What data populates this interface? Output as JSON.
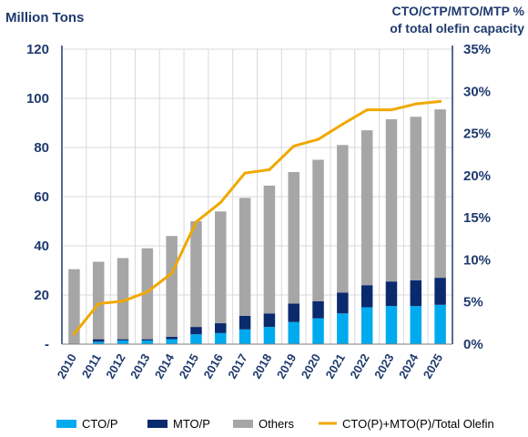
{
  "chart_data": {
    "type": "bar",
    "stacked": true,
    "y_left_label": "Million Tons",
    "y_right_label_line1": "CTO/CTP/MTO/MTP %",
    "y_right_label_line2": "of total olefin capacity",
    "ylim_left": [
      0,
      120
    ],
    "ylim_right": [
      0,
      35
    ],
    "y_left_ticks": [
      "-",
      "20",
      "40",
      "60",
      "80",
      "100",
      "120"
    ],
    "y_left_tick_values": [
      0,
      20,
      40,
      60,
      80,
      100,
      120
    ],
    "y_right_ticks": [
      "0%",
      "5%",
      "10%",
      "15%",
      "20%",
      "25%",
      "30%",
      "35%"
    ],
    "y_right_tick_values": [
      0,
      5,
      10,
      15,
      20,
      25,
      30,
      35
    ],
    "grid": true,
    "legend_position": "bottom",
    "categories": [
      "2010",
      "2011",
      "2012",
      "2013",
      "2014",
      "2015",
      "2016",
      "2017",
      "2018",
      "2019",
      "2020",
      "2021",
      "2022",
      "2023",
      "2024",
      "2025"
    ],
    "series": [
      {
        "name": "CTO/P",
        "kind": "bar",
        "color": "#00aaee",
        "values": [
          0,
          1,
          1.5,
          1.5,
          2,
          4,
          4.5,
          6,
          7,
          9,
          10.5,
          12.5,
          15,
          15.5,
          15.5,
          16
        ]
      },
      {
        "name": "MTO/P",
        "kind": "bar",
        "color": "#0a2a6e",
        "values": [
          0,
          1,
          0.5,
          0.5,
          1,
          3,
          4,
          5.5,
          5.5,
          7.5,
          7,
          8.5,
          9,
          10,
          10.5,
          11
        ]
      },
      {
        "name": "Others",
        "kind": "bar",
        "color": "#a6a6a6",
        "values": [
          30.5,
          31.5,
          33,
          37,
          41,
          43,
          45.5,
          48,
          52,
          53.5,
          57.5,
          60,
          63,
          66,
          66.5,
          68.5
        ]
      },
      {
        "name": "CTO(P)+MTO(P)/Total Olefin",
        "kind": "line",
        "axis": "right",
        "color": "#f0a800",
        "values": [
          1.2,
          4.8,
          5.1,
          6.2,
          8.4,
          14.5,
          16.8,
          20.3,
          20.7,
          23.5,
          24.3,
          26.1,
          27.8,
          27.8,
          28.5,
          28.8
        ]
      }
    ]
  }
}
